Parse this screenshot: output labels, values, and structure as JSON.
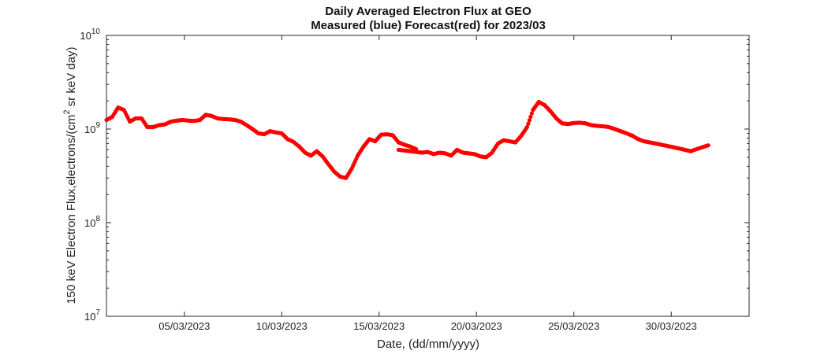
{
  "chart_data": {
    "type": "scatter",
    "title": "Daily Averaged Electron Flux at GEO",
    "subtitle": "Measured (blue) Forecast(red) for 2023/03",
    "xlabel": "Date, (dd/mm/yyyy)",
    "ylabel_main": "150 keV Electron Flux,electrons/(cm",
    "ylabel_sup": "2",
    "ylabel_tail": " sr keV day)",
    "y_scale": "log",
    "ylim": [
      10000000,
      10000000000
    ],
    "xlim": [
      "2023-03-01",
      "2023-04-03"
    ],
    "x_ticks": [
      "05/03/2023",
      "10/03/2023",
      "15/03/2023",
      "20/03/2023",
      "25/03/2023",
      "30/03/2023"
    ],
    "y_ticks": [
      {
        "value": 10000000,
        "base": "10",
        "exp": "7"
      },
      {
        "value": 100000000,
        "base": "10",
        "exp": "8"
      },
      {
        "value": 1000000000,
        "base": "10",
        "exp": "9"
      },
      {
        "value": 10000000000,
        "base": "10",
        "exp": "10"
      }
    ],
    "grid": false,
    "series": [
      {
        "color": "#ff0000",
        "x_start": "2023-03-01",
        "x_step_days": 0.0625,
        "x": [
          0,
          0.3,
          0.6,
          0.9,
          1.2,
          1.5,
          1.8,
          2.1,
          2.4,
          2.7,
          3.0,
          3.3,
          3.6,
          3.9,
          4.2,
          4.5,
          4.8,
          5.1,
          5.4,
          5.7,
          6.0,
          6.3,
          6.6,
          6.9,
          7.2,
          7.5,
          7.8,
          8.1,
          8.4,
          8.7,
          9.0,
          9.3,
          9.6,
          9.9,
          10.2,
          10.5,
          10.8,
          11.1,
          11.4,
          11.7,
          12.0,
          12.3,
          12.6,
          12.9,
          13.2,
          13.5,
          13.8,
          14.1,
          14.4,
          14.7,
          15.0,
          15.3,
          15.6,
          15.9
        ],
        "y": [
          1250000000,
          1350000000,
          1700000000,
          1600000000,
          1200000000,
          1300000000,
          1300000000,
          1050000000,
          1050000000,
          1100000000,
          1120000000,
          1200000000,
          1230000000,
          1250000000,
          1230000000,
          1220000000,
          1250000000,
          1420000000,
          1380000000,
          1300000000,
          1280000000,
          1270000000,
          1250000000,
          1200000000,
          1100000000,
          1000000000,
          900000000,
          880000000,
          950000000,
          920000000,
          900000000,
          780000000,
          730000000,
          650000000,
          560000000,
          520000000,
          580000000,
          510000000,
          420000000,
          350000000,
          310000000,
          300000000,
          380000000,
          520000000,
          650000000,
          780000000,
          740000000,
          870000000,
          880000000,
          860000000,
          720000000,
          680000000,
          650000000,
          610000000
        ]
      },
      {
        "color": "#ff0000",
        "x_start": "2023-03-16",
        "x_step_days": 0.0625,
        "x": [
          0,
          0.3,
          0.6,
          0.9,
          1.2,
          1.5,
          1.8,
          2.1,
          2.4,
          2.7,
          3.0,
          3.3,
          3.6,
          3.9,
          4.2,
          4.5,
          4.8,
          5.1,
          5.4,
          5.7,
          6.0,
          6.3,
          6.6,
          6.9,
          7.2,
          7.5,
          7.8,
          8.1,
          8.4,
          8.7,
          9.0,
          9.3,
          9.6,
          9.9,
          10.2,
          10.5,
          10.8,
          11.1,
          11.4,
          11.7,
          12.0,
          12.3,
          12.6,
          12.9,
          13.2,
          13.5,
          13.8,
          14.1,
          14.4,
          14.7,
          15.0,
          15.3,
          15.6,
          15.9
        ],
        "y": [
          600000000,
          590000000,
          580000000,
          570000000,
          560000000,
          570000000,
          540000000,
          560000000,
          550000000,
          520000000,
          600000000,
          560000000,
          550000000,
          540000000,
          510000000,
          500000000,
          560000000,
          700000000,
          760000000,
          740000000,
          720000000,
          850000000,
          1050000000,
          1600000000,
          1950000000,
          1800000000,
          1550000000,
          1300000000,
          1150000000,
          1130000000,
          1160000000,
          1170000000,
          1150000000,
          1100000000,
          1080000000,
          1070000000,
          1050000000,
          1000000000,
          950000000,
          900000000,
          850000000,
          780000000,
          740000000,
          720000000,
          700000000,
          680000000,
          660000000,
          640000000,
          620000000,
          600000000,
          580000000,
          610000000,
          640000000,
          670000000
        ]
      }
    ]
  }
}
